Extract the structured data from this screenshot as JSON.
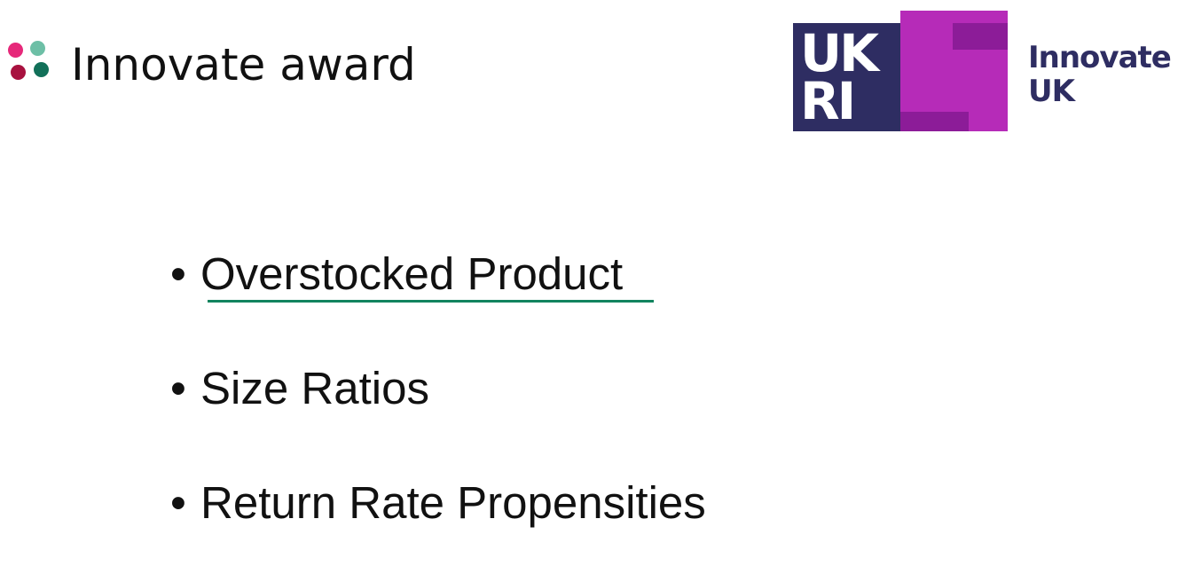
{
  "slide": {
    "title": "Innovate award",
    "title_dot_colors": [
      "#e6287a",
      "#6dbfa6",
      "#a8113f",
      "#127059"
    ]
  },
  "logo": {
    "ukri_letters": "UKRI",
    "text_line1": "Innovate",
    "text_line2": "UK",
    "colors": {
      "navy": "#2e2d62",
      "magenta": "#b62bb8",
      "magenta_dark": "#8c1c98",
      "text": "#2e2d62"
    }
  },
  "bullets": {
    "symbol": "•",
    "items": [
      {
        "text": "Overstocked Product",
        "underlined": true
      },
      {
        "text": "Size Ratios",
        "underlined": false
      },
      {
        "text": "Return Rate Propensities",
        "underlined": false
      }
    ],
    "underline_color": "#12845f"
  }
}
